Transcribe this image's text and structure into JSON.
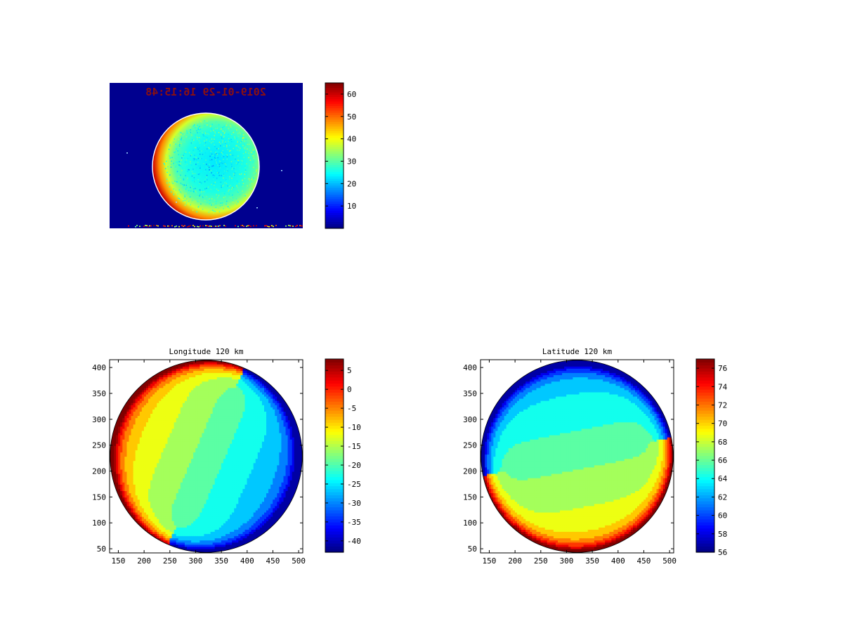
{
  "chart_data": [
    {
      "type": "heatmap",
      "panel": "image",
      "title": "",
      "timestamp_text": "2019-01-29 16:15:48",
      "colorbar": {
        "min": 0,
        "max": 65,
        "ticks": [
          10,
          20,
          30,
          40,
          50,
          60
        ],
        "colormap": "jet"
      },
      "axes_visible": false,
      "disk": {
        "edge_value": 65,
        "center_value": 25,
        "background_value": 0
      }
    },
    {
      "type": "contour",
      "panel": "longitude",
      "title": "Longitude 120 km",
      "xlim": [
        133,
        508
      ],
      "ylim": [
        42,
        415
      ],
      "xticks": [
        150,
        200,
        250,
        300,
        350,
        400,
        450,
        500
      ],
      "yticks": [
        50,
        100,
        150,
        200,
        250,
        300,
        350,
        400
      ],
      "colorbar": {
        "min": -43,
        "max": 8,
        "ticks": [
          5,
          0,
          -5,
          -10,
          -15,
          -20,
          -25,
          -30,
          -35,
          -40
        ],
        "colormap": "jet"
      },
      "disk": {
        "center": [
          320.5,
          228.5
        ],
        "radius": 186.5
      },
      "field": {
        "kind": "longitude",
        "center_value": -19,
        "gradient_per_unit": [
          -0.058,
          0.025
        ]
      }
    },
    {
      "type": "contour",
      "panel": "latitude",
      "title": "Latitude 120 km",
      "xlim": [
        133,
        508
      ],
      "ylim": [
        42,
        415
      ],
      "xticks": [
        150,
        200,
        250,
        300,
        350,
        400,
        450,
        500
      ],
      "yticks": [
        50,
        100,
        150,
        200,
        250,
        300,
        350,
        400
      ],
      "colorbar": {
        "min": 56,
        "max": 77,
        "ticks": [
          76,
          74,
          72,
          70,
          68,
          66,
          64,
          62,
          60,
          58,
          56
        ],
        "colormap": "jet"
      },
      "disk": {
        "center": [
          320.5,
          228.5
        ],
        "radius": 186.5
      },
      "field": {
        "kind": "latitude",
        "center_value": 66,
        "gradient_per_unit": [
          0.004,
          -0.02
        ]
      }
    }
  ]
}
